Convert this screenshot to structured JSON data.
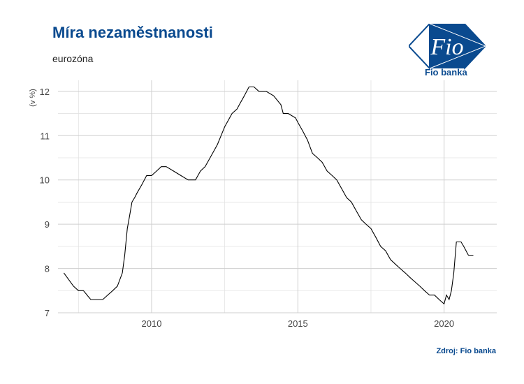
{
  "title": "Míra nezaměstnanosti",
  "subtitle": "eurozóna",
  "source": "Zdroj: Fio banka",
  "logo": {
    "mark": "Fio",
    "name": "Fio banka",
    "color": "#0a4a8f"
  },
  "chart_data": {
    "type": "line",
    "ylabel": "(v %)",
    "xlabel": "",
    "xlim": [
      2006.8,
      2021.8
    ],
    "ylim": [
      7,
      12.25
    ],
    "x_ticks": [
      2010,
      2015,
      2020
    ],
    "y_ticks": [
      7,
      8,
      9,
      10,
      11,
      12
    ],
    "grid": true,
    "line_color": "#000000",
    "series": [
      {
        "x": [
          2007.0,
          2007.33,
          2007.5,
          2007.67,
          2007.92,
          2008.0,
          2008.33,
          2008.5,
          2008.67,
          2008.83,
          2009.0,
          2009.08,
          2009.17,
          2009.25,
          2009.33,
          2009.42,
          2009.5,
          2009.67,
          2009.83,
          2010.0,
          2010.17,
          2010.33,
          2010.5,
          2010.75,
          2011.0,
          2011.25,
          2011.5,
          2011.67,
          2011.83,
          2012.0,
          2012.25,
          2012.5,
          2012.75,
          2012.92,
          2013.0,
          2013.17,
          2013.25,
          2013.33,
          2013.5,
          2013.67,
          2013.92,
          2014.17,
          2014.42,
          2014.5,
          2014.67,
          2014.92,
          2015.0,
          2015.17,
          2015.33,
          2015.5,
          2015.67,
          2015.83,
          2016.0,
          2016.17,
          2016.33,
          2016.5,
          2016.67,
          2016.83,
          2017.0,
          2017.17,
          2017.33,
          2017.5,
          2017.67,
          2017.83,
          2018.0,
          2018.17,
          2018.33,
          2018.5,
          2018.67,
          2018.83,
          2019.0,
          2019.17,
          2019.33,
          2019.5,
          2019.67,
          2019.83,
          2020.0,
          2020.08,
          2020.17,
          2020.25,
          2020.33,
          2020.42,
          2020.5,
          2020.58,
          2020.67,
          2020.83,
          2021.0
        ],
        "values": [
          7.9,
          7.6,
          7.5,
          7.5,
          7.3,
          7.3,
          7.3,
          7.4,
          7.5,
          7.6,
          7.9,
          8.3,
          8.9,
          9.2,
          9.5,
          9.6,
          9.7,
          9.9,
          10.1,
          10.1,
          10.2,
          10.3,
          10.3,
          10.2,
          10.1,
          10.0,
          10.0,
          10.2,
          10.3,
          10.5,
          10.8,
          11.2,
          11.5,
          11.6,
          11.7,
          11.9,
          12.0,
          12.1,
          12.1,
          12.0,
          12.0,
          11.9,
          11.7,
          11.5,
          11.5,
          11.4,
          11.3,
          11.1,
          10.9,
          10.6,
          10.5,
          10.4,
          10.2,
          10.1,
          10.0,
          9.8,
          9.6,
          9.5,
          9.3,
          9.1,
          9.0,
          8.9,
          8.7,
          8.5,
          8.4,
          8.2,
          8.1,
          8.0,
          7.9,
          7.8,
          7.7,
          7.6,
          7.5,
          7.4,
          7.4,
          7.3,
          7.2,
          7.4,
          7.3,
          7.5,
          7.9,
          8.6,
          8.6,
          8.6,
          8.5,
          8.3,
          8.3
        ]
      }
    ]
  }
}
